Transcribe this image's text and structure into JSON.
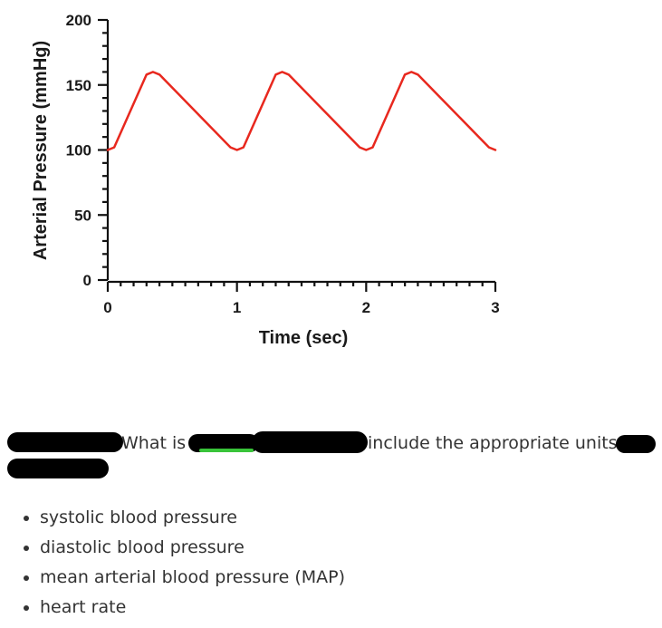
{
  "chart_data": {
    "type": "line",
    "title": "",
    "xlabel": "Time (sec)",
    "ylabel": "Arterial Pressure (mmHg)",
    "xlim": [
      0,
      3
    ],
    "ylim": [
      0,
      200
    ],
    "x_ticks": [
      0,
      1,
      2,
      3
    ],
    "y_ticks": [
      0,
      50,
      100,
      150,
      200
    ],
    "x_tick_labels": [
      "0",
      "1",
      "2",
      "3"
    ],
    "y_tick_labels": [
      "0",
      "50",
      "100",
      "150",
      "200"
    ],
    "grid": false,
    "series": [
      {
        "name": "Arterial Pressure",
        "color": "#e8281e",
        "x": [
          0,
          0.05,
          0.3,
          0.35,
          0.4,
          0.95,
          1.0,
          1.05,
          1.3,
          1.35,
          1.4,
          1.95,
          2.0,
          2.05,
          2.3,
          2.35,
          2.4,
          2.95,
          3.0
        ],
        "y": [
          100,
          102,
          158,
          160,
          158,
          102,
          100,
          102,
          158,
          160,
          158,
          102,
          100,
          102,
          158,
          160,
          158,
          102,
          100
        ]
      }
    ]
  },
  "question": {
    "text_a": "What is",
    "text_b": "include the appropriate units"
  },
  "criteria": [
    "systolic blood pressure",
    "diastolic blood pressure",
    "mean arterial blood pressure (MAP)",
    "heart rate"
  ]
}
